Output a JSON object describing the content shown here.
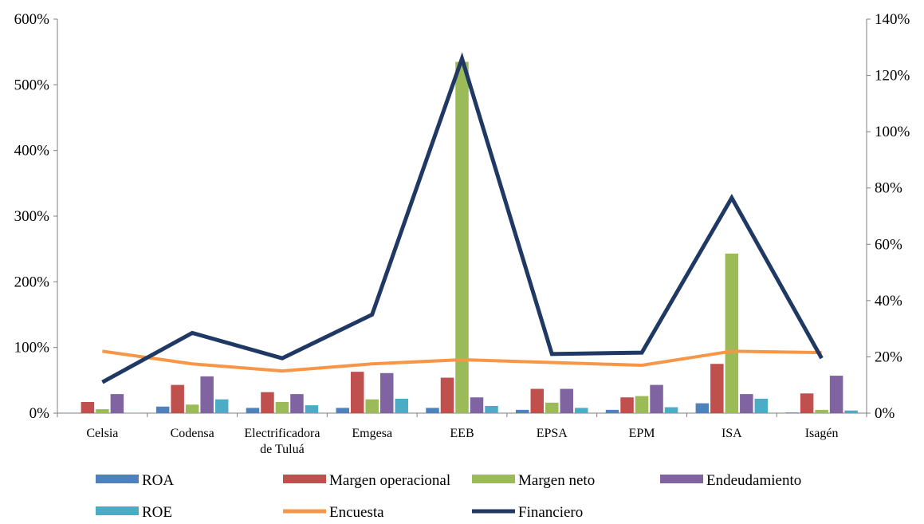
{
  "chart_data": {
    "type": "bar",
    "categories": [
      [
        "Celsia"
      ],
      [
        "Codensa"
      ],
      [
        "Electrificadora",
        "de Tuluá"
      ],
      [
        "Emgesa"
      ],
      [
        "EEB"
      ],
      [
        "EPSA"
      ],
      [
        "EPM"
      ],
      [
        "ISA"
      ],
      [
        "Isagén"
      ]
    ],
    "y_left": {
      "min": 0,
      "max": 600,
      "step": 100,
      "ticks": [
        "0%",
        "100%",
        "200%",
        "300%",
        "400%",
        "500%",
        "600%"
      ]
    },
    "y_right": {
      "min": 0,
      "max": 140,
      "step": 20,
      "ticks": [
        "0%",
        "20%",
        "40%",
        "60%",
        "80%",
        "100%",
        "120%",
        "140%"
      ]
    },
    "bar_series": [
      {
        "name": "ROA",
        "color": "#4f81bd",
        "values": [
          0.5,
          10,
          8,
          8,
          8,
          5,
          5,
          15,
          1
        ]
      },
      {
        "name": "Margen operacional",
        "color": "#c0504d",
        "values": [
          17,
          43,
          32,
          63,
          54,
          37,
          24,
          75,
          30
        ]
      },
      {
        "name": "Margen neto",
        "color": "#9bbb59",
        "values": [
          6,
          13,
          17,
          21,
          535,
          16,
          26,
          243,
          5
        ]
      },
      {
        "name": "Endeudamiento",
        "color": "#8064a2",
        "values": [
          29,
          56,
          29,
          61,
          24,
          37,
          43,
          29,
          57
        ]
      },
      {
        "name": "ROE",
        "color": "#4bacc6",
        "values": [
          0.5,
          21,
          12,
          22,
          11,
          8,
          9,
          22,
          4
        ]
      }
    ],
    "line_series": [
      {
        "name": "Encuesta",
        "color": "#f79646",
        "axis": "right",
        "values": [
          22,
          17.5,
          15,
          17.5,
          19,
          18,
          17,
          22,
          21.5
        ]
      },
      {
        "name": "Financiero",
        "color": "#1f3864",
        "axis": "right",
        "values": [
          11,
          28.5,
          19.5,
          35,
          126,
          21,
          21.5,
          76.5,
          19.5
        ]
      }
    ],
    "legend_position": "bottom",
    "grid": false
  },
  "legend": {
    "row1": [
      "ROA",
      "Margen operacional",
      "Margen neto",
      "Endeudamiento"
    ],
    "row2": [
      "ROE",
      "Encuesta",
      "Financiero"
    ]
  }
}
